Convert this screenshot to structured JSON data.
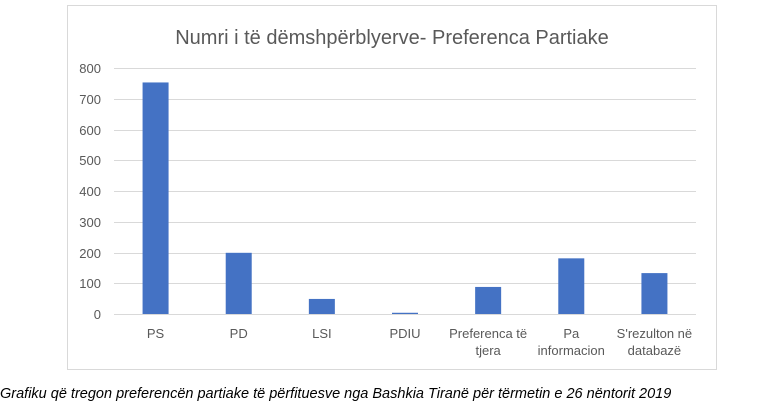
{
  "chart_data": {
    "type": "bar",
    "title": "Numri i të dëmshpërblyerve- Preferenca Partiake",
    "categories": [
      [
        "PS"
      ],
      [
        "PD"
      ],
      [
        "LSI"
      ],
      [
        "PDIU"
      ],
      [
        "Preferenca të",
        "tjera"
      ],
      [
        "Pa",
        "informacion"
      ],
      [
        "S'rezulton në",
        "databazë"
      ]
    ],
    "values": [
      753,
      199,
      49,
      4,
      88,
      181,
      133
    ],
    "ylim": [
      0,
      800
    ],
    "yticks": [
      0,
      100,
      200,
      300,
      400,
      500,
      600,
      700,
      800
    ],
    "grid": true,
    "legend": "none",
    "bar_color": "#4472c4",
    "grid_color": "#d9d9d9",
    "text_color": "#595959"
  },
  "caption": "Grafiku që tregon preferencën partiake të përfituesve nga Bashkia Tiranë për tërmetin e 26 nëntorit 2019"
}
